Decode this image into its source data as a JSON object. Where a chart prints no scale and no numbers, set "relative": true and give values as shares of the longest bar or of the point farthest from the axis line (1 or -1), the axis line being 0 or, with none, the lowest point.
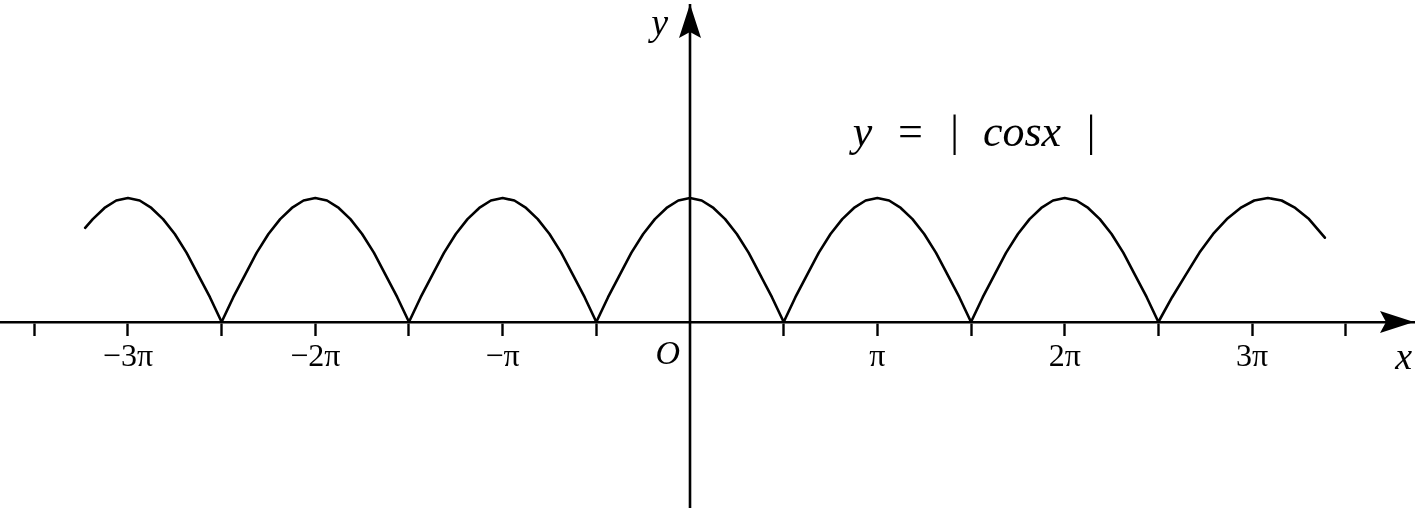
{
  "chart_data": {
    "type": "line",
    "relative": true,
    "xlabel": "x",
    "ylabel": "y",
    "annotations": [
      "y = | cosx |",
      "O"
    ],
    "xlim": [
      -11.57,
      12.14
    ],
    "xticks": [
      {
        "value": -10.996,
        "label": null
      },
      {
        "value": -9.425,
        "label": "−3π"
      },
      {
        "value": -7.854,
        "label": null
      },
      {
        "value": -6.283,
        "label": "−2π"
      },
      {
        "value": -4.712,
        "label": null
      },
      {
        "value": -3.142,
        "label": "−π"
      },
      {
        "value": -1.571,
        "label": null
      },
      {
        "value": 1.571,
        "label": null
      },
      {
        "value": 3.142,
        "label": "π"
      },
      {
        "value": 4.712,
        "label": null
      },
      {
        "value": 6.283,
        "label": "2π"
      },
      {
        "value": 7.854,
        "label": null
      },
      {
        "value": 9.425,
        "label": "3π"
      },
      {
        "value": 10.996,
        "label": null
      }
    ],
    "tick_labels": "x",
    "grid": false,
    "legend": false,
    "marker": "none",
    "line_style": "solid",
    "color": "#000000",
    "x": [
      -10.142,
      -10.014,
      -9.818,
      -9.621,
      -9.425,
      -9.228,
      -9.032,
      -8.836,
      -8.639,
      -8.443,
      -8.247,
      -8.05,
      -7.854,
      -7.658,
      -7.461,
      -7.265,
      -7.069,
      -6.872,
      -6.676,
      -6.48,
      -6.283,
      -6.087,
      -5.89,
      -5.694,
      -5.498,
      -5.301,
      -5.105,
      -4.909,
      -4.712,
      -4.516,
      -4.32,
      -4.123,
      -3.927,
      -3.731,
      -3.534,
      -3.338,
      -3.142,
      -2.945,
      -2.749,
      -2.553,
      -2.356,
      -2.16,
      -1.963,
      -1.767,
      -1.571,
      -1.374,
      -1.178,
      -0.982,
      -0.785,
      -0.589,
      -0.393,
      -0.196,
      0,
      0.196,
      0.393,
      0.589,
      0.785,
      0.982,
      1.178,
      1.374,
      1.571,
      1.767,
      1.963,
      2.16,
      2.356,
      2.553,
      2.749,
      2.945,
      3.142,
      3.338,
      3.534,
      3.731,
      3.927,
      4.123,
      4.32,
      4.516,
      4.712,
      4.909,
      5.105,
      5.301,
      5.498,
      5.694,
      5.89,
      6.087,
      6.283,
      6.48,
      6.676,
      6.872,
      7.069,
      7.265,
      7.461,
      7.658,
      7.854,
      8.084,
      8.313,
      8.543,
      8.772,
      9.002,
      9.231,
      9.461,
      9.69,
      9.92,
      10.149,
      10.379,
      10.645
    ],
    "values": [
      0.76,
      0.83,
      0.92,
      0.98,
      1,
      0.98,
      0.92,
      0.83,
      0.71,
      0.56,
      0.38,
      0.2,
      0,
      0.2,
      0.38,
      0.56,
      0.71,
      0.83,
      0.92,
      0.98,
      1,
      0.98,
      0.92,
      0.83,
      0.71,
      0.56,
      0.38,
      0.2,
      0,
      0.2,
      0.38,
      0.56,
      0.71,
      0.83,
      0.92,
      0.98,
      1,
      0.98,
      0.92,
      0.83,
      0.71,
      0.56,
      0.38,
      0.2,
      0,
      0.2,
      0.38,
      0.56,
      0.71,
      0.83,
      0.92,
      0.98,
      1,
      0.98,
      0.92,
      0.83,
      0.71,
      0.56,
      0.38,
      0.2,
      0,
      0.2,
      0.38,
      0.56,
      0.71,
      0.83,
      0.92,
      0.98,
      1,
      0.98,
      0.92,
      0.83,
      0.71,
      0.56,
      0.38,
      0.2,
      0,
      0.2,
      0.38,
      0.56,
      0.71,
      0.83,
      0.92,
      0.98,
      1,
      0.98,
      0.92,
      0.83,
      0.71,
      0.56,
      0.38,
      0.2,
      0,
      0.2,
      0.38,
      0.56,
      0.71,
      0.83,
      0.92,
      0.98,
      1,
      0.98,
      0.92,
      0.83,
      0.68
    ]
  }
}
